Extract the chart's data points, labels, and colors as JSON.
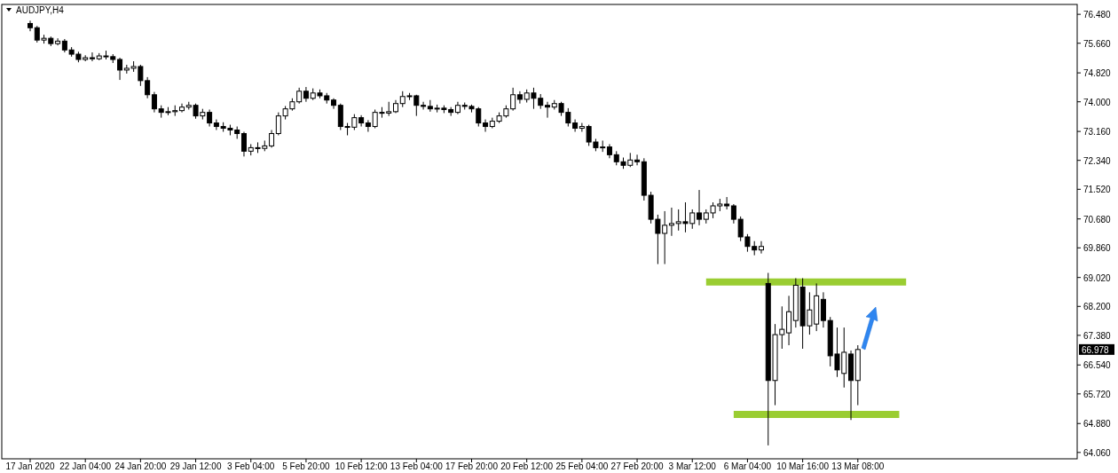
{
  "chart_data": {
    "type": "candlestick",
    "title": "AUDJPY,H4",
    "categories": [
      "17 Jan 2020",
      null,
      null,
      null,
      null,
      null,
      null,
      null,
      "22 Jan 04:00",
      null,
      null,
      null,
      null,
      null,
      null,
      null,
      "24 Jan 20:00",
      null,
      null,
      null,
      null,
      null,
      null,
      null,
      "29 Jan 12:00",
      null,
      null,
      null,
      null,
      null,
      null,
      null,
      "3 Feb 04:00",
      null,
      null,
      null,
      null,
      null,
      null,
      null,
      "5 Feb 20:00",
      null,
      null,
      null,
      null,
      null,
      null,
      null,
      "10 Feb 12:00",
      null,
      null,
      null,
      null,
      null,
      null,
      null,
      "13 Feb 04:00",
      null,
      null,
      null,
      null,
      null,
      null,
      null,
      "17 Feb 20:00",
      null,
      null,
      null,
      null,
      null,
      null,
      null,
      "20 Feb 12:00",
      null,
      null,
      null,
      null,
      null,
      null,
      null,
      "25 Feb 04:00",
      null,
      null,
      null,
      null,
      null,
      null,
      null,
      "27 Feb 20:00",
      null,
      null,
      null,
      null,
      null,
      null,
      null,
      "3 Mar 12:00",
      null,
      null,
      null,
      null,
      null,
      null,
      null,
      "6 Mar 04:00",
      null,
      null,
      null,
      null,
      null,
      null,
      null,
      "10 Mar 16:00",
      null,
      null,
      null,
      null,
      null,
      null,
      null,
      "13 Mar 08:00",
      null,
      null,
      null,
      null,
      null,
      null,
      null,
      null,
      null,
      null,
      null,
      null,
      null,
      null,
      null,
      null,
      null,
      null,
      null,
      null,
      null,
      null,
      null,
      null,
      null,
      null,
      null,
      null,
      null,
      null,
      null
    ],
    "ohlc": [
      [
        76.22,
        76.3,
        76.0,
        76.1
      ],
      [
        76.1,
        76.15,
        75.68,
        75.75
      ],
      [
        75.75,
        75.9,
        75.65,
        75.8
      ],
      [
        75.8,
        75.85,
        75.58,
        75.65
      ],
      [
        75.65,
        75.8,
        75.6,
        75.72
      ],
      [
        75.72,
        75.78,
        75.4,
        75.47
      ],
      [
        75.47,
        75.55,
        75.28,
        75.35
      ],
      [
        75.35,
        75.42,
        75.12,
        75.2
      ],
      [
        75.2,
        75.32,
        75.15,
        75.25
      ],
      [
        75.25,
        75.4,
        75.15,
        75.22
      ],
      [
        75.22,
        75.38,
        75.18,
        75.3
      ],
      [
        75.3,
        75.45,
        75.2,
        75.28
      ],
      [
        75.28,
        75.35,
        75.1,
        75.2
      ],
      [
        75.2,
        75.25,
        74.62,
        74.9
      ],
      [
        74.9,
        75.05,
        74.8,
        74.95
      ],
      [
        74.95,
        75.15,
        74.85,
        75.0
      ],
      [
        75.0,
        75.05,
        74.45,
        74.6
      ],
      [
        74.6,
        74.7,
        74.1,
        74.2
      ],
      [
        74.2,
        74.28,
        73.7,
        73.8
      ],
      [
        73.8,
        73.9,
        73.55,
        73.7
      ],
      [
        73.7,
        73.85,
        73.62,
        73.72
      ],
      [
        73.72,
        73.9,
        73.6,
        73.75
      ],
      [
        73.75,
        73.95,
        73.7,
        73.85
      ],
      [
        73.85,
        74.0,
        73.78,
        73.9
      ],
      [
        73.9,
        73.95,
        73.52,
        73.6
      ],
      [
        73.6,
        73.8,
        73.5,
        73.7
      ],
      [
        73.7,
        73.78,
        73.3,
        73.4
      ],
      [
        73.4,
        73.5,
        73.2,
        73.3
      ],
      [
        73.3,
        73.42,
        73.15,
        73.25
      ],
      [
        73.25,
        73.35,
        73.05,
        73.2
      ],
      [
        73.2,
        73.3,
        72.95,
        73.1
      ],
      [
        73.1,
        73.15,
        72.45,
        72.6
      ],
      [
        72.6,
        72.8,
        72.48,
        72.7
      ],
      [
        72.7,
        72.85,
        72.55,
        72.68
      ],
      [
        72.68,
        72.9,
        72.6,
        72.75
      ],
      [
        72.75,
        73.2,
        72.7,
        73.1
      ],
      [
        73.1,
        73.7,
        73.05,
        73.6
      ],
      [
        73.6,
        73.88,
        73.5,
        73.8
      ],
      [
        73.8,
        74.1,
        73.75,
        74.0
      ],
      [
        74.0,
        74.4,
        73.95,
        74.3
      ],
      [
        74.3,
        74.42,
        74.0,
        74.1
      ],
      [
        74.1,
        74.38,
        74.05,
        74.25
      ],
      [
        74.25,
        74.35,
        74.1,
        74.17
      ],
      [
        74.17,
        74.25,
        73.95,
        74.05
      ],
      [
        74.05,
        74.1,
        73.8,
        73.9
      ],
      [
        73.9,
        73.95,
        73.2,
        73.3
      ],
      [
        73.3,
        73.4,
        73.05,
        73.28
      ],
      [
        73.28,
        73.65,
        73.2,
        73.55
      ],
      [
        73.55,
        73.62,
        73.3,
        73.4
      ],
      [
        73.4,
        73.48,
        73.15,
        73.3
      ],
      [
        73.3,
        73.78,
        73.25,
        73.7
      ],
      [
        73.7,
        73.85,
        73.55,
        73.68
      ],
      [
        73.68,
        74.0,
        73.6,
        73.72
      ],
      [
        73.72,
        74.05,
        73.68,
        73.95
      ],
      [
        73.95,
        74.3,
        73.85,
        74.15
      ],
      [
        74.15,
        74.25,
        74.05,
        74.17
      ],
      [
        74.17,
        74.2,
        73.6,
        73.9
      ],
      [
        73.9,
        74.0,
        73.78,
        73.87
      ],
      [
        73.87,
        74.05,
        73.72,
        73.8
      ],
      [
        73.8,
        73.92,
        73.7,
        73.82
      ],
      [
        73.82,
        73.9,
        73.68,
        73.78
      ],
      [
        73.78,
        73.85,
        73.6,
        73.7
      ],
      [
        73.7,
        74.0,
        73.65,
        73.9
      ],
      [
        73.9,
        73.98,
        73.78,
        73.87
      ],
      [
        73.87,
        73.92,
        73.7,
        73.8
      ],
      [
        73.8,
        73.85,
        73.3,
        73.4
      ],
      [
        73.4,
        73.5,
        73.15,
        73.3
      ],
      [
        73.3,
        73.55,
        73.25,
        73.45
      ],
      [
        73.45,
        73.7,
        73.4,
        73.6
      ],
      [
        73.6,
        73.9,
        73.55,
        73.8
      ],
      [
        73.8,
        74.4,
        73.75,
        74.2
      ],
      [
        74.2,
        74.3,
        73.95,
        74.07
      ],
      [
        74.07,
        74.35,
        73.98,
        74.25
      ],
      [
        74.25,
        74.4,
        73.8,
        74.1
      ],
      [
        74.1,
        74.22,
        73.8,
        73.9
      ],
      [
        73.9,
        74.0,
        73.55,
        73.85
      ],
      [
        73.85,
        74.05,
        73.78,
        73.95
      ],
      [
        73.95,
        74.0,
        73.6,
        73.7
      ],
      [
        73.7,
        73.82,
        73.3,
        73.4
      ],
      [
        73.4,
        73.5,
        73.15,
        73.25
      ],
      [
        73.25,
        73.4,
        73.15,
        73.3
      ],
      [
        73.3,
        73.35,
        72.75,
        72.86
      ],
      [
        72.86,
        72.95,
        72.6,
        72.7
      ],
      [
        72.7,
        72.9,
        72.58,
        72.72
      ],
      [
        72.72,
        72.8,
        72.4,
        72.5
      ],
      [
        72.5,
        72.6,
        72.2,
        72.3
      ],
      [
        72.3,
        72.42,
        72.1,
        72.2
      ],
      [
        72.2,
        72.55,
        72.15,
        72.35
      ],
      [
        72.35,
        72.5,
        72.2,
        72.3
      ],
      [
        72.3,
        72.4,
        71.2,
        71.35
      ],
      [
        71.35,
        71.45,
        70.55,
        70.67
      ],
      [
        70.67,
        70.8,
        69.4,
        70.27
      ],
      [
        70.27,
        70.9,
        69.4,
        70.5
      ],
      [
        70.5,
        71.0,
        70.2,
        70.55
      ],
      [
        70.55,
        70.95,
        70.35,
        70.6
      ],
      [
        70.6,
        71.15,
        70.3,
        70.55
      ],
      [
        70.55,
        70.95,
        70.4,
        70.85
      ],
      [
        70.85,
        71.5,
        70.5,
        70.67
      ],
      [
        70.67,
        70.95,
        70.55,
        70.85
      ],
      [
        70.85,
        71.15,
        70.7,
        71.05
      ],
      [
        71.05,
        71.25,
        70.9,
        71.1
      ],
      [
        71.1,
        71.3,
        70.95,
        71.05
      ],
      [
        71.05,
        71.1,
        70.55,
        70.67
      ],
      [
        70.67,
        70.75,
        70.05,
        70.17
      ],
      [
        70.17,
        70.25,
        69.75,
        69.9
      ],
      [
        69.9,
        70.05,
        69.65,
        69.8
      ],
      [
        69.8,
        70.05,
        69.7,
        69.9
      ],
      [
        68.85,
        69.15,
        64.26,
        66.1
      ],
      [
        66.1,
        67.7,
        65.4,
        67.4
      ],
      [
        67.4,
        68.2,
        67.0,
        67.55
      ],
      [
        67.45,
        68.5,
        67.1,
        68.05
      ],
      [
        67.8,
        69.0,
        67.6,
        68.8
      ],
      [
        68.75,
        69.0,
        67.0,
        67.65
      ],
      [
        67.65,
        68.6,
        67.4,
        68.1
      ],
      [
        67.7,
        68.85,
        67.5,
        68.5
      ],
      [
        68.4,
        68.6,
        67.6,
        67.8
      ],
      [
        67.8,
        67.9,
        66.5,
        66.8
      ],
      [
        66.85,
        67.6,
        66.2,
        66.4
      ],
      [
        66.3,
        67.6,
        65.9,
        66.9
      ],
      [
        66.85,
        66.95,
        64.98,
        66.1
      ],
      [
        66.1,
        67.1,
        65.4,
        66.978
      ],
      null,
      null,
      null,
      null,
      null,
      null,
      null,
      null,
      null,
      null,
      null,
      null,
      null,
      null,
      null,
      null,
      null,
      null,
      null,
      null,
      null,
      null,
      null,
      null,
      null,
      null,
      null,
      null,
      null,
      null,
      null
    ],
    "series": [
      {
        "type": "line",
        "color": "#9acd32",
        "values": [
          null,
          null,
          null,
          null,
          null,
          null,
          null,
          null,
          null,
          null,
          null,
          null,
          null,
          null,
          null,
          null,
          null,
          null,
          null,
          null,
          null,
          null,
          null,
          null,
          null,
          null,
          null,
          null,
          null,
          null,
          null,
          null,
          null,
          null,
          null,
          null,
          null,
          null,
          null,
          null,
          null,
          null,
          null,
          null,
          null,
          null,
          null,
          null,
          null,
          null,
          null,
          null,
          null,
          null,
          null,
          null,
          null,
          null,
          null,
          null,
          null,
          null,
          null,
          null,
          null,
          null,
          null,
          null,
          null,
          null,
          null,
          null,
          null,
          null,
          null,
          null,
          null,
          null,
          null,
          null,
          null,
          null,
          null,
          null,
          null,
          null,
          null,
          null,
          null,
          null,
          null,
          null,
          null,
          null,
          null,
          null,
          null,
          null,
          68.89,
          68.89,
          68.89,
          68.89,
          68.89,
          68.89,
          68.89,
          68.89,
          68.89,
          68.89,
          68.89,
          68.89,
          68.89,
          68.89,
          68.89,
          68.89,
          68.89,
          68.89,
          68.89,
          68.89,
          68.89,
          68.89,
          68.89,
          68.89,
          68.89,
          68.89,
          68.89,
          68.89,
          68.89,
          68.89,
          null,
          null,
          null,
          null,
          null,
          null,
          null,
          null,
          null,
          null,
          null,
          null,
          null,
          null,
          null,
          null,
          null,
          null,
          null,
          null,
          null,
          null,
          null,
          null
        ]
      },
      {
        "type": "line",
        "color": "#9acd32",
        "values": [
          null,
          null,
          null,
          null,
          null,
          null,
          null,
          null,
          null,
          null,
          null,
          null,
          null,
          null,
          null,
          null,
          null,
          null,
          null,
          null,
          null,
          null,
          null,
          null,
          null,
          null,
          null,
          null,
          null,
          null,
          null,
          null,
          null,
          null,
          null,
          null,
          null,
          null,
          null,
          null,
          null,
          null,
          null,
          null,
          null,
          null,
          null,
          null,
          null,
          null,
          null,
          null,
          null,
          null,
          null,
          null,
          null,
          null,
          null,
          null,
          null,
          null,
          null,
          null,
          null,
          null,
          null,
          null,
          null,
          null,
          null,
          null,
          null,
          null,
          null,
          null,
          null,
          null,
          null,
          null,
          null,
          null,
          null,
          null,
          null,
          null,
          null,
          null,
          null,
          null,
          null,
          null,
          null,
          null,
          null,
          null,
          null,
          null,
          null,
          null,
          null,
          null,
          65.14,
          65.14,
          65.14,
          65.14,
          65.14,
          65.14,
          65.14,
          65.14,
          65.14,
          65.14,
          65.14,
          65.14,
          65.14,
          65.14,
          65.14,
          65.14,
          65.14,
          65.14,
          65.14,
          65.14,
          65.14,
          65.14,
          65.14,
          65.14,
          65.14,
          null,
          null,
          null,
          null,
          null,
          null,
          null,
          null,
          null,
          null,
          null,
          null,
          null,
          null,
          null,
          null,
          null,
          null,
          null,
          null,
          null,
          null,
          null,
          null,
          null
        ]
      }
    ],
    "ylim": [
      63.88,
      76.76
    ],
    "yticks": [
      {
        "value": 64.06,
        "label": "64.060"
      },
      {
        "value": 64.88,
        "label": "64.880"
      },
      {
        "value": 65.72,
        "label": "65.720"
      },
      {
        "value": 66.54,
        "label": "66.540"
      },
      {
        "value": 67.38,
        "label": "67.380"
      },
      {
        "value": 68.2,
        "label": "68.200"
      },
      {
        "value": 69.02,
        "label": "69.020"
      },
      {
        "value": 69.86,
        "label": "69.860"
      },
      {
        "value": 70.68,
        "label": "70.680"
      },
      {
        "value": 71.52,
        "label": "71.520"
      },
      {
        "value": 72.34,
        "label": "72.340"
      },
      {
        "value": 73.16,
        "label": "73.160"
      },
      {
        "value": 74.0,
        "label": "74.000"
      },
      {
        "value": 74.82,
        "label": "74.820"
      },
      {
        "value": 75.66,
        "label": "75.660"
      },
      {
        "value": 76.48,
        "label": "76.480"
      }
    ],
    "annotations": [
      "66.978"
    ]
  }
}
